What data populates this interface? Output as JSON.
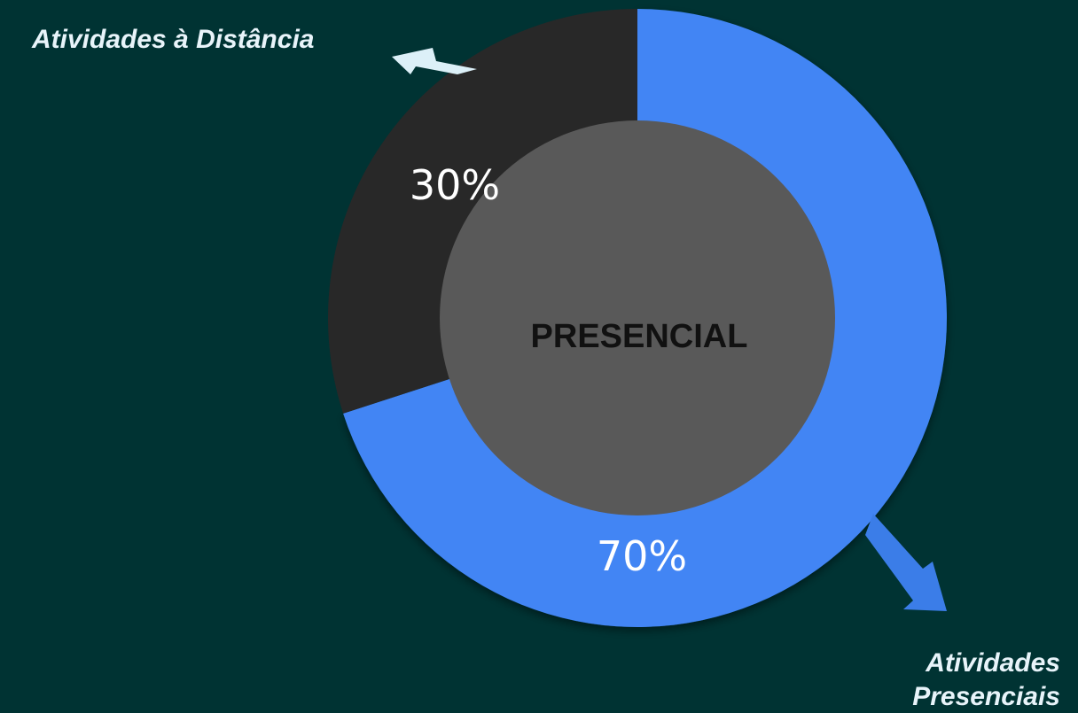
{
  "chart_data": {
    "type": "pie",
    "variant": "donut",
    "center_label": "PRESENCIAL",
    "slices": [
      {
        "label": "Atividades Presenciais",
        "value": 70,
        "value_label": "70%",
        "color": "#4285f4"
      },
      {
        "label": "Atividades à Distância",
        "value": 30,
        "value_label": "30%",
        "color": "#282828"
      }
    ],
    "colors": {
      "background": "#003333",
      "hole": "#595959",
      "label_text": "#e8f4fa",
      "percent_text": "#ffffff",
      "center_text": "#111111",
      "arrow_distancia": "#dcf0f8",
      "arrow_presenciais": "#3b7de8"
    }
  }
}
